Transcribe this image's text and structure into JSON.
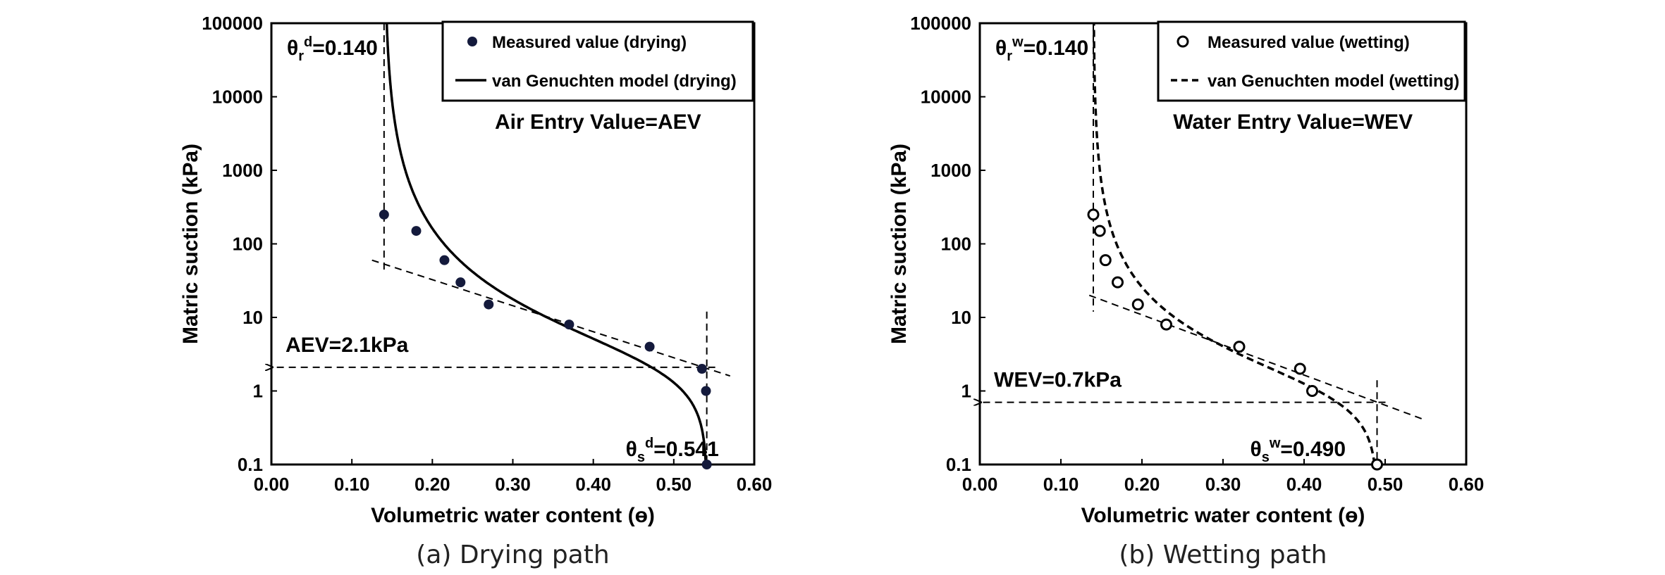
{
  "chart_data": [
    {
      "type": "scatter",
      "panel": "a",
      "caption": "(a) Drying path",
      "xlabel": "Volumetric water content (ɵ)",
      "ylabel": "Matric suction (kPa)",
      "xlim": [
        0,
        0.6
      ],
      "ylim": [
        0.1,
        100000
      ],
      "yscale": "log",
      "x_ticks": [
        "0.00",
        "0.10",
        "0.20",
        "0.30",
        "0.40",
        "0.50",
        "0.60"
      ],
      "y_ticks": [
        "0.1",
        "1",
        "10",
        "100",
        "1000",
        "10000",
        "100000"
      ],
      "grid": false,
      "legend_position": "top-right",
      "legend": [
        {
          "label": "Measured value (drying)",
          "symbol": "filled-circle"
        },
        {
          "label": "van Genuchten model (drying)",
          "symbol": "solid-line"
        }
      ],
      "series": [
        {
          "name": "Measured value (drying)",
          "style": "filled-circle",
          "points": [
            [
              0.14,
              250
            ],
            [
              0.18,
              150
            ],
            [
              0.215,
              60
            ],
            [
              0.235,
              30
            ],
            [
              0.27,
              15
            ],
            [
              0.37,
              8
            ],
            [
              0.47,
              4
            ],
            [
              0.535,
              2
            ],
            [
              0.54,
              1
            ],
            [
              0.541,
              0.1
            ]
          ]
        },
        {
          "name": "van Genuchten model (drying)",
          "style": "solid",
          "model": {
            "theta_r": 0.14,
            "theta_s": 0.541,
            "alpha": 0.42,
            "n": 1.45
          }
        }
      ],
      "annotations": {
        "theta_r_label": "θ",
        "theta_r_sub": "r",
        "theta_r_sup": "d",
        "theta_r_value": "=0.140",
        "theta_s_label": "θ",
        "theta_s_sub": "s",
        "theta_s_sup": "d",
        "theta_s_value": "=0.541",
        "entry_value_text": "Air Entry Value=AEV",
        "entry_result_text": "AEV=2.1kPa",
        "entry_value": 2.1,
        "theta_r": 0.14,
        "theta_s": 0.541,
        "tangent_line": [
          [
            0.125,
            60
          ],
          [
            0.57,
            1.6
          ]
        ]
      }
    },
    {
      "type": "scatter",
      "panel": "b",
      "caption": "(b) Wetting path",
      "xlabel": "Volumetric water content (ɵ)",
      "ylabel": "Matric suction (kPa)",
      "xlim": [
        0,
        0.6
      ],
      "ylim": [
        0.1,
        100000
      ],
      "yscale": "log",
      "x_ticks": [
        "0.00",
        "0.10",
        "0.20",
        "0.30",
        "0.40",
        "0.50",
        "0.60"
      ],
      "y_ticks": [
        "0.1",
        "1",
        "10",
        "100",
        "1000",
        "10000",
        "100000"
      ],
      "grid": false,
      "legend_position": "top-right",
      "legend": [
        {
          "label": "Measured value (wetting)",
          "symbol": "open-circle"
        },
        {
          "label": "van Genuchten model (wetting)",
          "symbol": "dashed-line"
        }
      ],
      "series": [
        {
          "name": "Measured value (wetting)",
          "style": "open-circle",
          "points": [
            [
              0.14,
              250
            ],
            [
              0.148,
              150
            ],
            [
              0.155,
              60
            ],
            [
              0.17,
              30
            ],
            [
              0.195,
              15
            ],
            [
              0.23,
              8
            ],
            [
              0.32,
              4
            ],
            [
              0.395,
              2
            ],
            [
              0.41,
              1
            ],
            [
              0.49,
              0.1
            ]
          ]
        },
        {
          "name": "van Genuchten model (wetting)",
          "style": "dashed",
          "model": {
            "theta_r": 0.14,
            "theta_s": 0.49,
            "alpha": 0.95,
            "n": 1.55
          }
        }
      ],
      "annotations": {
        "theta_r_label": "θ",
        "theta_r_sub": "r",
        "theta_r_sup": "w",
        "theta_r_value": "=0.140",
        "theta_s_label": "θ",
        "theta_s_sub": "s",
        "theta_s_sup": "w",
        "theta_s_value": "=0.490",
        "entry_value_text": "Water Entry Value=WEV",
        "entry_result_text": "WEV=0.7kPa",
        "entry_value": 0.7,
        "theta_r": 0.14,
        "theta_s": 0.49,
        "tangent_line": [
          [
            0.135,
            20
          ],
          [
            0.55,
            0.4
          ]
        ]
      }
    }
  ]
}
